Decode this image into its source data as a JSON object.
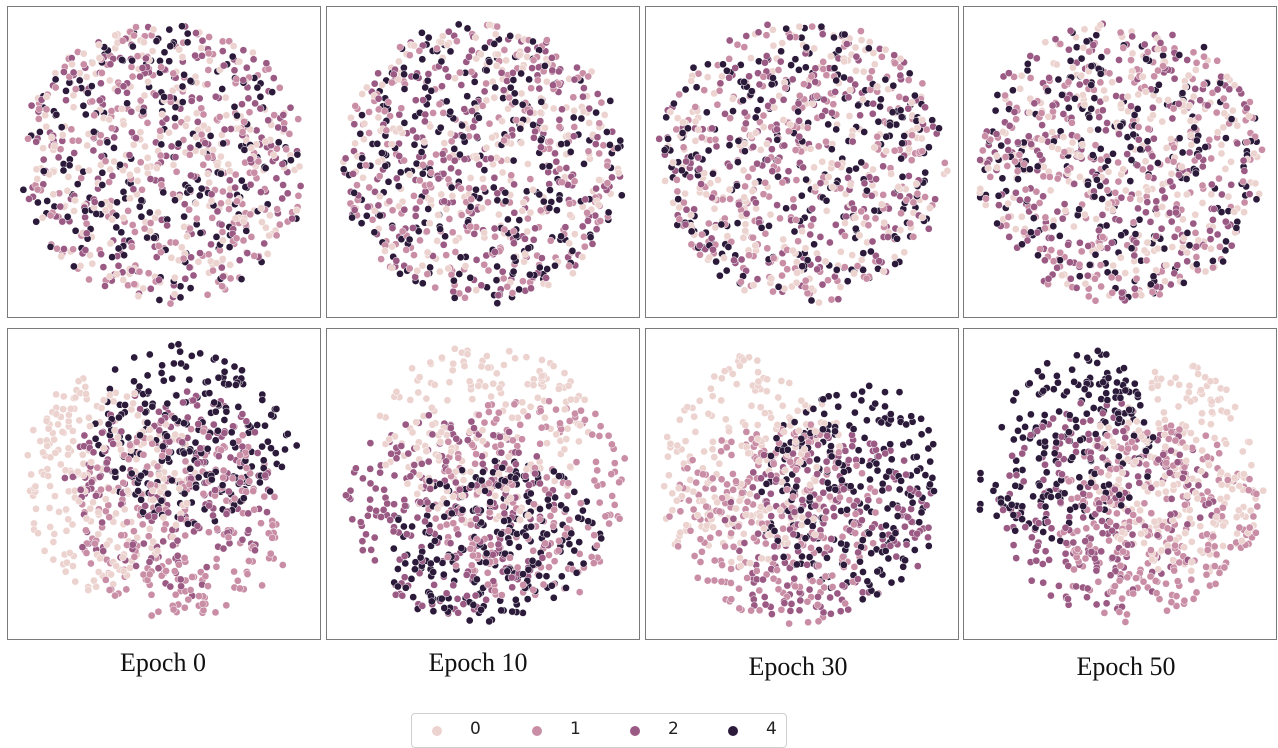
{
  "chart_data": {
    "type": "scatter",
    "description_rows": [
      "top-row",
      "bottom-row"
    ],
    "columns": [
      "Epoch 0",
      "Epoch 10",
      "Epoch 30",
      "Epoch 50"
    ],
    "legend": {
      "placement": "bottom-center",
      "entries": [
        {
          "label": "0",
          "color": "#ecd3cf"
        },
        {
          "label": "1",
          "color": "#c98ea5"
        },
        {
          "label": "2",
          "color": "#9a5a84"
        },
        {
          "label": "4",
          "color": "#2b1a3a"
        }
      ]
    },
    "grid": false,
    "axes_visible": false,
    "points_per_panel": 900
  },
  "captions": [
    "Epoch 0",
    "Epoch 10",
    "Epoch 30",
    "Epoch 50"
  ],
  "colors": {
    "class_0": "#ecd3cf",
    "class_1": "#c98ea5",
    "class_2": "#9a5a84",
    "class_4": "#2b1a3a",
    "panel_border": "#7a7a7a"
  }
}
